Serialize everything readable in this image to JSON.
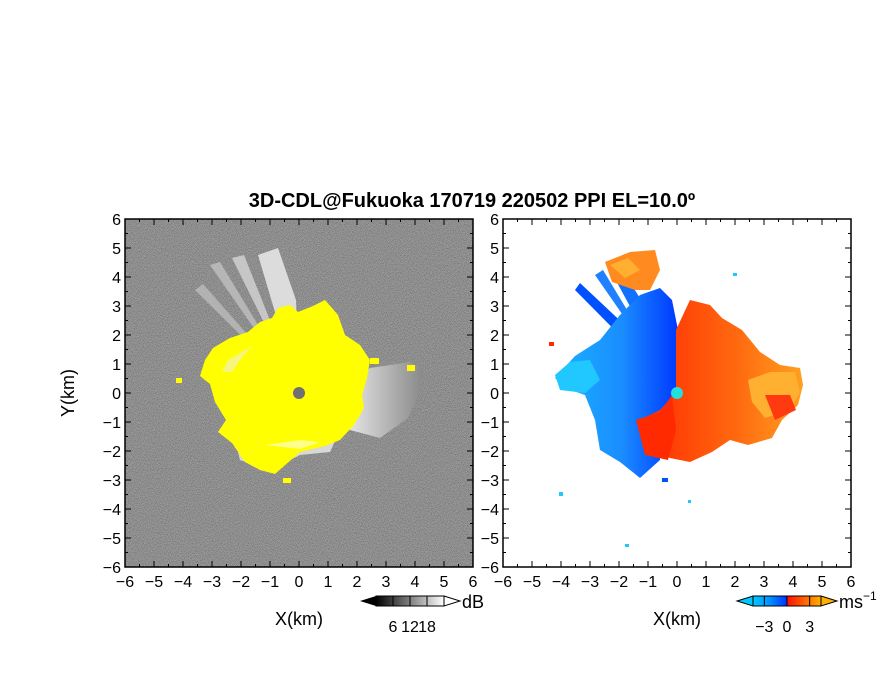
{
  "chart_data": {
    "title": "3D-CDL@Fukuoka 170719 220502 PPI EL=10.0º",
    "panels": [
      {
        "type": "heatmap",
        "name": "reflectivity",
        "xlabel": "X(km)",
        "ylabel": "Y(km)",
        "xlim": [
          -6,
          6
        ],
        "ylim": [
          -6,
          6
        ],
        "xticks": [
          "−6",
          "−5",
          "−4",
          "−3",
          "−2",
          "−1",
          "0",
          "1",
          "2",
          "3",
          "4",
          "5",
          "6"
        ],
        "yticks": [
          "6",
          "5",
          "4",
          "3",
          "2",
          "1",
          "0",
          "−1",
          "−2",
          "−3",
          "−4",
          "−5",
          "−6"
        ],
        "colorbar": {
          "unit": "dB",
          "ticks": [
            "6",
            "12",
            "18"
          ],
          "range": [
            0,
            24
          ]
        },
        "colors": {
          "background": "#2a2a2a",
          "saturated": "#ffff00",
          "weak": "#c8c8c8",
          "center_marker": "#707070"
        }
      },
      {
        "type": "heatmap",
        "name": "doppler_velocity",
        "xlabel": "X(km)",
        "ylabel": "",
        "xlim": [
          -6,
          6
        ],
        "ylim": [
          -6,
          6
        ],
        "xticks": [
          "−6",
          "−5",
          "−4",
          "−3",
          "−2",
          "−1",
          "0",
          "1",
          "2",
          "3",
          "4",
          "5",
          "6"
        ],
        "yticks": [
          "6",
          "5",
          "4",
          "3",
          "2",
          "1",
          "0",
          "−1",
          "−2",
          "−3",
          "−4",
          "−5",
          "−6"
        ],
        "colorbar": {
          "unit": "ms",
          "unit_sup": "−1",
          "ticks": [
            "−3",
            "0",
            "3"
          ],
          "range": [
            -4.5,
            4.5
          ]
        },
        "colors": {
          "negative_strong": "#0038ff",
          "negative_weak": "#1ab3ff",
          "positive_weak": "#ff8a1a",
          "positive_strong": "#ff2a00",
          "center_marker": "#20e0e0"
        }
      }
    ]
  }
}
